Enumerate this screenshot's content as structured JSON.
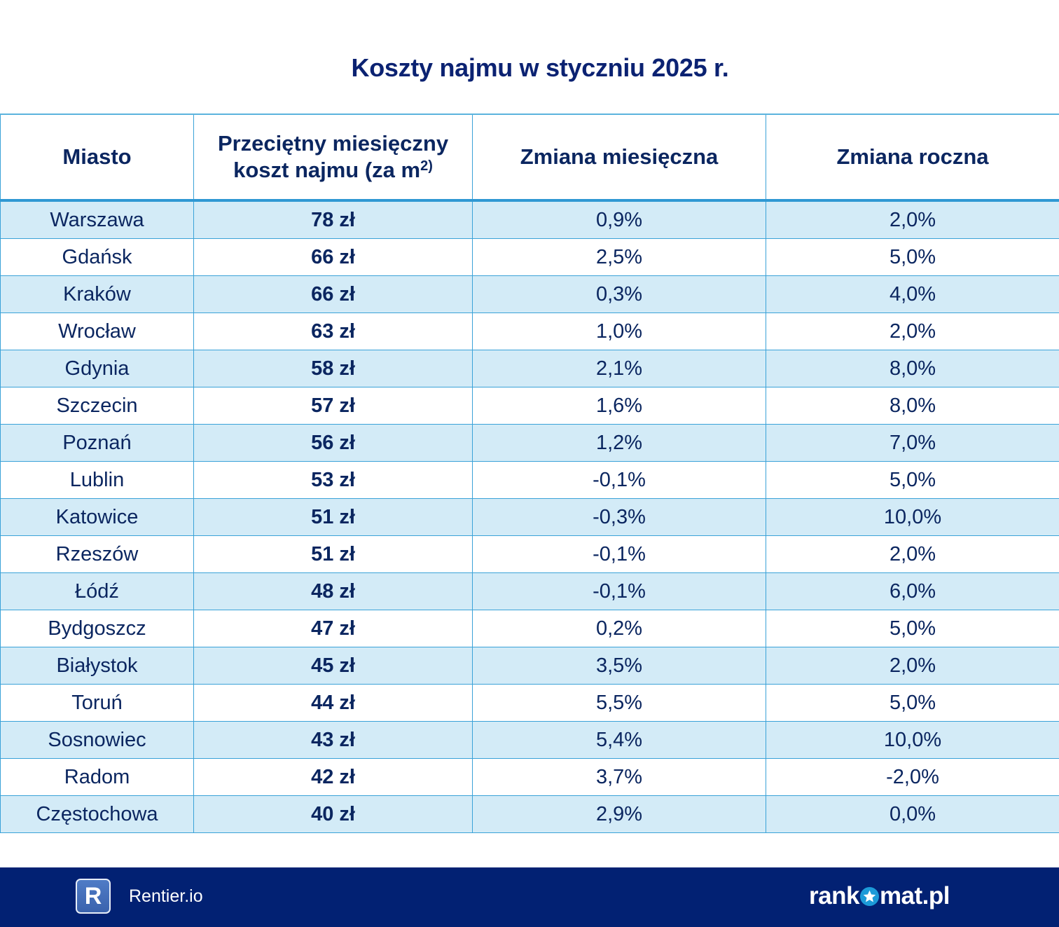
{
  "title": "Koszty najmu w styczniu 2025 r.",
  "table": {
    "headers": {
      "city": "Miasto",
      "cost_line1": "Przeciętny miesięczny",
      "cost_line2": "koszt najmu (za m",
      "cost_sup": "2)",
      "monthly": "Zmiana miesięczna",
      "yearly": "Zmiana roczna"
    },
    "rows": [
      {
        "city": "Warszawa",
        "cost": "78 zł",
        "monthly": "0,9%",
        "yearly": "2,0%"
      },
      {
        "city": "Gdańsk",
        "cost": "66 zł",
        "monthly": "2,5%",
        "yearly": "5,0%"
      },
      {
        "city": "Kraków",
        "cost": "66 zł",
        "monthly": "0,3%",
        "yearly": "4,0%"
      },
      {
        "city": "Wrocław",
        "cost": "63 zł",
        "monthly": "1,0%",
        "yearly": "2,0%"
      },
      {
        "city": "Gdynia",
        "cost": "58 zł",
        "monthly": "2,1%",
        "yearly": "8,0%"
      },
      {
        "city": "Szczecin",
        "cost": "57 zł",
        "monthly": "1,6%",
        "yearly": "8,0%"
      },
      {
        "city": "Poznań",
        "cost": "56 zł",
        "monthly": "1,2%",
        "yearly": "7,0%"
      },
      {
        "city": "Lublin",
        "cost": "53 zł",
        "monthly": "-0,1%",
        "yearly": "5,0%"
      },
      {
        "city": "Katowice",
        "cost": "51 zł",
        "monthly": "-0,3%",
        "yearly": "10,0%"
      },
      {
        "city": "Rzeszów",
        "cost": "51 zł",
        "monthly": "-0,1%",
        "yearly": "2,0%"
      },
      {
        "city": "Łódź",
        "cost": "48 zł",
        "monthly": "-0,1%",
        "yearly": "6,0%"
      },
      {
        "city": "Bydgoszcz",
        "cost": "47 zł",
        "monthly": "0,2%",
        "yearly": "5,0%"
      },
      {
        "city": "Białystok",
        "cost": "45 zł",
        "monthly": "3,5%",
        "yearly": "2,0%"
      },
      {
        "city": "Toruń",
        "cost": "44 zł",
        "monthly": "5,5%",
        "yearly": "5,0%"
      },
      {
        "city": "Sosnowiec",
        "cost": "43 zł",
        "monthly": "5,4%",
        "yearly": "10,0%"
      },
      {
        "city": "Radom",
        "cost": "42 zł",
        "monthly": "3,7%",
        "yearly": "-2,0%"
      },
      {
        "city": "Częstochowa",
        "cost": "40 zł",
        "monthly": "2,9%",
        "yearly": "0,0%"
      }
    ]
  },
  "footer": {
    "rentier_logo_letter": "R",
    "rentier_name": "Rentier.io",
    "rankomat_left": "rank",
    "rankomat_right": "mat.pl",
    "background_color": "#022173"
  },
  "colors": {
    "title": "#0b2272",
    "text": "#0b2660",
    "row_stripe": "#d3ebf7",
    "border": "#3aa2d8"
  }
}
